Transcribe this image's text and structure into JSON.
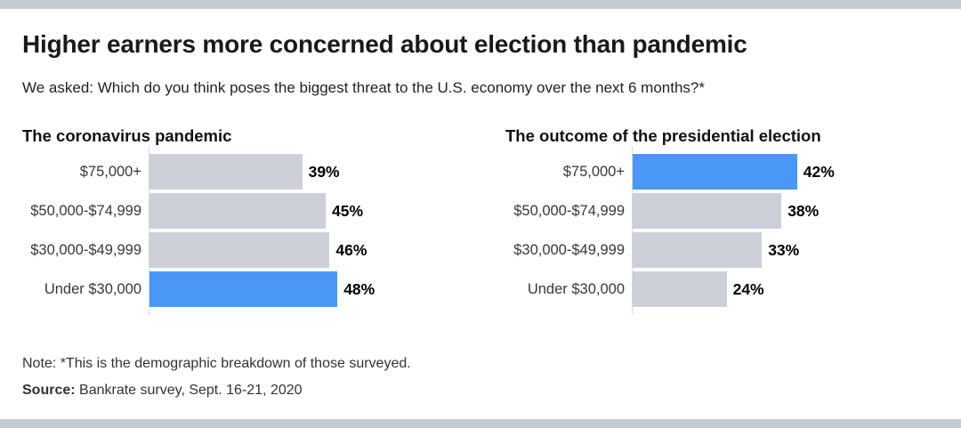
{
  "page": {
    "title": "Higher earners more concerned about election than pandemic",
    "subtitle": "We asked: Which do you think poses the biggest threat to the U.S. economy over the next 6 months?*",
    "note": "Note: *This is the demographic breakdown of those surveyed.",
    "source_label": "Source:",
    "source_text": " Bankrate survey, Sept. 16-21, 2020"
  },
  "colors": {
    "highlight_blue": "#4a97f5",
    "bar_gray": "#cdd0d8",
    "band_gray": "#c6cad3",
    "axis_gray": "#d8dbe1"
  },
  "chart_data": [
    {
      "type": "bar",
      "orientation": "horizontal",
      "title": "The coronavirus pandemic",
      "categories": [
        "$75,000+",
        "$50,000-$74,999",
        "$30,000-$49,999",
        "Under $30,000"
      ],
      "values": [
        39,
        45,
        46,
        48
      ],
      "value_suffix": "%",
      "highlight_index": 3,
      "xlim": [
        0,
        50
      ],
      "grid": false,
      "legend": false
    },
    {
      "type": "bar",
      "orientation": "horizontal",
      "title": "The outcome of the presidential election",
      "categories": [
        "$75,000+",
        "$50,000-$74,999",
        "$30,000-$49,999",
        "Under $30,000"
      ],
      "values": [
        42,
        38,
        33,
        24
      ],
      "value_suffix": "%",
      "highlight_index": 0,
      "xlim": [
        0,
        50
      ],
      "grid": false,
      "legend": false
    }
  ]
}
